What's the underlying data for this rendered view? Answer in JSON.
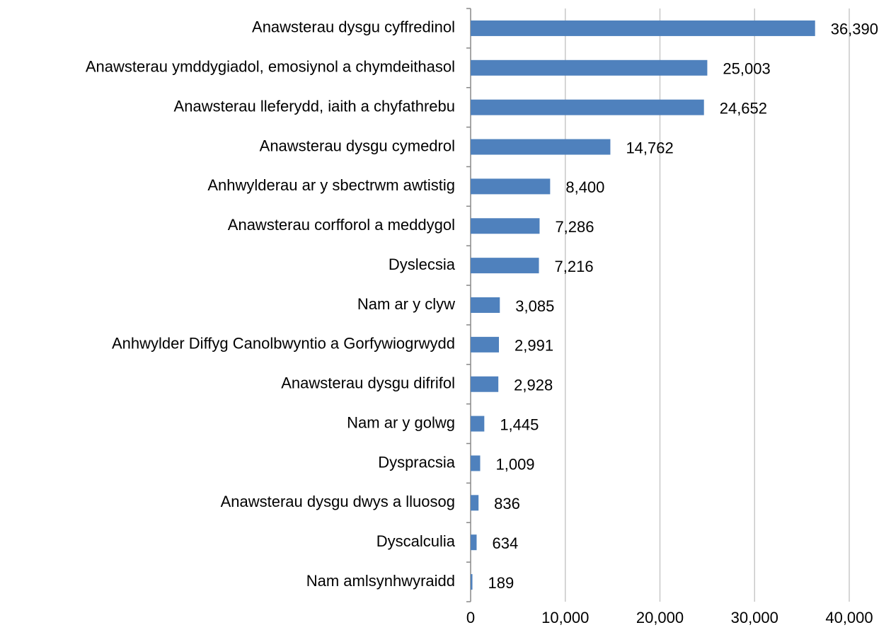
{
  "chart_data": {
    "type": "bar",
    "orientation": "horizontal",
    "categories": [
      "Anawsterau dysgu cyffredinol",
      "Anawsterau ymddygiadol, emosiynol a chymdeithasol",
      "Anawsterau lleferydd, iaith a chyfathrebu",
      "Anawsterau dysgu cymedrol",
      "Anhwylderau ar y sbectrwm awtistig",
      "Anawsterau corfforol a meddygol",
      "Dyslecsia",
      "Nam ar y clyw",
      "Anhwylder Diffyg Canolbwyntio a Gorfywiogrwydd",
      "Anawsterau dysgu difrifol",
      "Nam ar y golwg",
      "Dyspracsia",
      "Anawsterau dysgu dwys a lluosog",
      "Dyscalculia",
      "Nam amlsynhwyraidd"
    ],
    "values": [
      36390,
      25003,
      24652,
      14762,
      8400,
      7286,
      7216,
      3085,
      2991,
      2928,
      1445,
      1009,
      836,
      634,
      189
    ],
    "value_labels": [
      "36,390",
      "25,003",
      "24,652",
      "14,762",
      "8,400",
      "7,286",
      "7,216",
      "3,085",
      "2,991",
      "2,928",
      "1,445",
      "1,009",
      "836",
      "634",
      "189"
    ],
    "color": "#4f81bd",
    "xlim": [
      0,
      40000
    ],
    "xticks": [
      0,
      {
        "value": 10000,
        "label": "10,000"
      },
      {
        "value": 20000,
        "label": "20,000"
      },
      {
        "value": 30000,
        "label": "30,000"
      },
      {
        "value": 40000,
        "label": "40,000"
      }
    ],
    "grid": true
  }
}
